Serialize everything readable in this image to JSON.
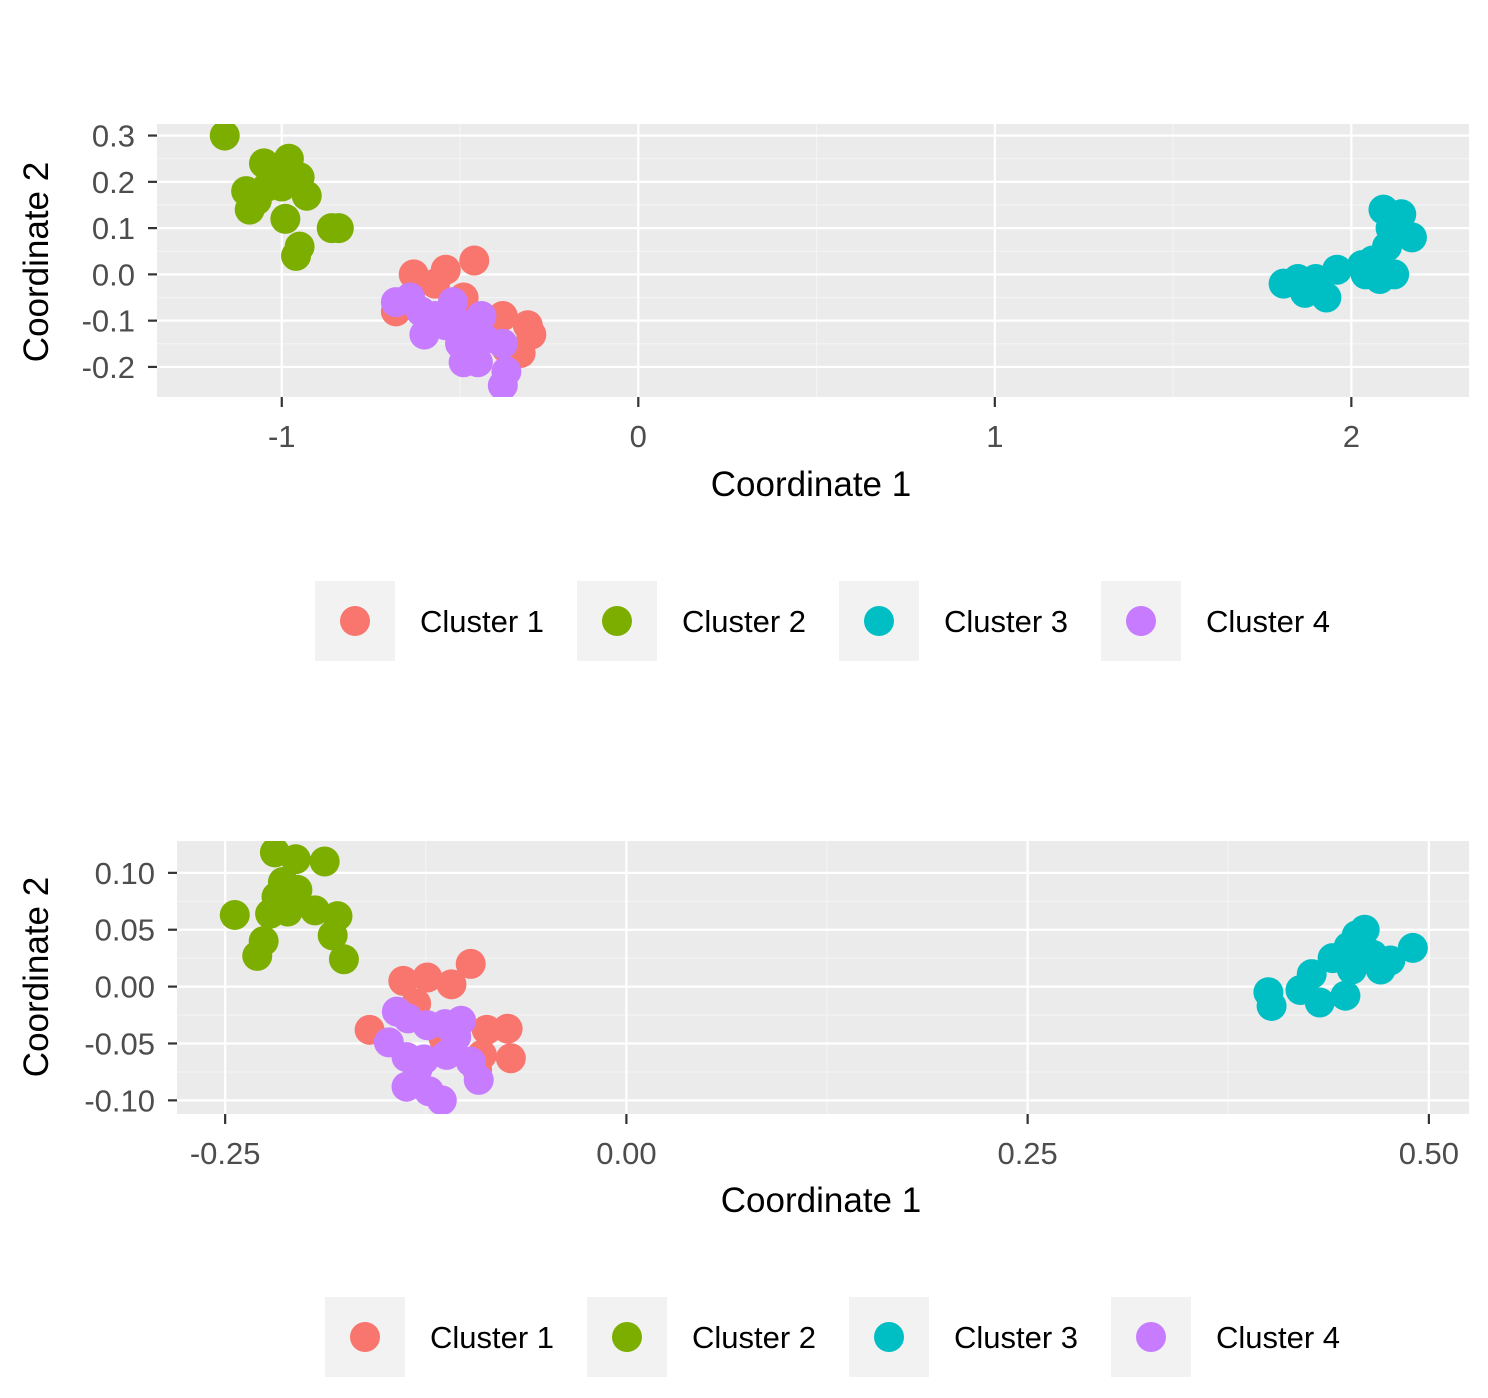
{
  "chart_data": [
    {
      "type": "scatter",
      "title": "",
      "xlabel": "Coordinate 1",
      "ylabel": "Coordinate 2",
      "xlim": [
        -1.35,
        2.33
      ],
      "ylim": [
        -0.265,
        0.325
      ],
      "xticks": [
        -1,
        0,
        1,
        2
      ],
      "xtick_labels": [
        "-1",
        "0",
        "1",
        "2"
      ],
      "yticks": [
        -0.2,
        -0.1,
        0.0,
        0.1,
        0.2,
        0.3
      ],
      "ytick_labels": [
        "-0.2",
        "-0.1",
        "0.0",
        "0.1",
        "0.2",
        "0.3"
      ],
      "legend_position": "bottom",
      "series": [
        {
          "name": "Cluster 1",
          "color": "#F8766D",
          "points": [
            [
              -0.63,
              0.0
            ],
            [
              -0.54,
              0.01
            ],
            [
              -0.46,
              0.03
            ],
            [
              -0.57,
              -0.02
            ],
            [
              -0.68,
              -0.08
            ],
            [
              -0.38,
              -0.09
            ],
            [
              -0.31,
              -0.11
            ],
            [
              -0.3,
              -0.13
            ],
            [
              -0.37,
              -0.16
            ],
            [
              -0.33,
              -0.17
            ],
            [
              -0.42,
              -0.12
            ],
            [
              -0.49,
              -0.05
            ]
          ]
        },
        {
          "name": "Cluster 2",
          "color": "#7CAE00",
          "points": [
            [
              -1.16,
              0.3
            ],
            [
              -1.1,
              0.18
            ],
            [
              -1.05,
              0.24
            ],
            [
              -1.02,
              0.22
            ],
            [
              -0.98,
              0.25
            ],
            [
              -1.0,
              0.19
            ],
            [
              -1.04,
              0.19
            ],
            [
              -0.95,
              0.21
            ],
            [
              -1.07,
              0.16
            ],
            [
              -0.93,
              0.17
            ],
            [
              -1.09,
              0.14
            ],
            [
              -0.99,
              0.12
            ],
            [
              -0.86,
              0.1
            ],
            [
              -0.84,
              0.1
            ],
            [
              -0.95,
              0.06
            ],
            [
              -0.96,
              0.04
            ]
          ]
        },
        {
          "name": "Cluster 3",
          "color": "#00BFC4",
          "points": [
            [
              1.81,
              -0.02
            ],
            [
              1.85,
              -0.01
            ],
            [
              1.9,
              -0.01
            ],
            [
              1.87,
              -0.04
            ],
            [
              1.93,
              -0.05
            ],
            [
              1.96,
              0.01
            ],
            [
              2.03,
              0.02
            ],
            [
              2.06,
              0.03
            ],
            [
              2.08,
              -0.01
            ],
            [
              2.12,
              0.0
            ],
            [
              2.1,
              0.06
            ],
            [
              2.11,
              0.1
            ],
            [
              2.09,
              0.14
            ],
            [
              2.14,
              0.13
            ],
            [
              2.17,
              0.08
            ],
            [
              2.04,
              0.0
            ]
          ]
        },
        {
          "name": "Cluster 4",
          "color": "#C77CFF",
          "points": [
            [
              -0.68,
              -0.06
            ],
            [
              -0.64,
              -0.05
            ],
            [
              -0.61,
              -0.08
            ],
            [
              -0.57,
              -0.09
            ],
            [
              -0.52,
              -0.06
            ],
            [
              -0.6,
              -0.13
            ],
            [
              -0.54,
              -0.11
            ],
            [
              -0.48,
              -0.11
            ],
            [
              -0.5,
              -0.15
            ],
            [
              -0.49,
              -0.19
            ],
            [
              -0.45,
              -0.19
            ],
            [
              -0.43,
              -0.14
            ],
            [
              -0.38,
              -0.15
            ],
            [
              -0.37,
              -0.21
            ],
            [
              -0.38,
              -0.24
            ],
            [
              -0.44,
              -0.09
            ]
          ]
        }
      ]
    },
    {
      "type": "scatter",
      "title": "",
      "xlabel": "Coordinate 1",
      "ylabel": "Coordinate 2",
      "xlim": [
        -0.28,
        0.525
      ],
      "ylim": [
        -0.112,
        0.128
      ],
      "xticks": [
        -0.25,
        0.0,
        0.25,
        0.5
      ],
      "xtick_labels": [
        "-0.25",
        "0.00",
        "0.25",
        "0.50"
      ],
      "yticks": [
        -0.1,
        -0.05,
        0.0,
        0.05,
        0.1
      ],
      "ytick_labels": [
        "-0.10",
        "-0.05",
        "0.00",
        "0.05",
        "0.10"
      ],
      "legend_position": "bottom",
      "series": [
        {
          "name": "Cluster 1",
          "color": "#F8766D",
          "points": [
            [
              -0.139,
              0.005
            ],
            [
              -0.124,
              0.008
            ],
            [
              -0.109,
              0.002
            ],
            [
              -0.097,
              0.02
            ],
            [
              -0.131,
              -0.015
            ],
            [
              -0.16,
              -0.038
            ],
            [
              -0.087,
              -0.038
            ],
            [
              -0.074,
              -0.037
            ],
            [
              -0.09,
              -0.06
            ],
            [
              -0.072,
              -0.063
            ],
            [
              -0.093,
              -0.073
            ],
            [
              -0.114,
              -0.045
            ]
          ]
        },
        {
          "name": "Cluster 2",
          "color": "#7CAE00",
          "points": [
            [
              -0.219,
              0.118
            ],
            [
              -0.206,
              0.112
            ],
            [
              -0.188,
              0.11
            ],
            [
              -0.214,
              0.092
            ],
            [
              -0.205,
              0.085
            ],
            [
              -0.218,
              0.079
            ],
            [
              -0.222,
              0.064
            ],
            [
              -0.211,
              0.066
            ],
            [
              -0.244,
              0.063
            ],
            [
              -0.226,
              0.04
            ],
            [
              -0.23,
              0.027
            ],
            [
              -0.194,
              0.067
            ],
            [
              -0.18,
              0.062
            ],
            [
              -0.183,
              0.045
            ],
            [
              -0.176,
              0.024
            ]
          ]
        },
        {
          "name": "Cluster 3",
          "color": "#00BFC4",
          "points": [
            [
              0.4,
              -0.005
            ],
            [
              0.402,
              -0.017
            ],
            [
              0.42,
              -0.003
            ],
            [
              0.427,
              0.011
            ],
            [
              0.432,
              -0.014
            ],
            [
              0.44,
              0.025
            ],
            [
              0.45,
              0.035
            ],
            [
              0.455,
              0.045
            ],
            [
              0.46,
              0.025
            ],
            [
              0.465,
              0.028
            ],
            [
              0.47,
              0.015
            ],
            [
              0.476,
              0.023
            ],
            [
              0.49,
              0.034
            ],
            [
              0.452,
              0.015
            ],
            [
              0.448,
              -0.008
            ],
            [
              0.46,
              0.05
            ]
          ]
        },
        {
          "name": "Cluster 4",
          "color": "#C77CFF",
          "points": [
            [
              -0.143,
              -0.022
            ],
            [
              -0.136,
              -0.028
            ],
            [
              -0.124,
              -0.034
            ],
            [
              -0.113,
              -0.033
            ],
            [
              -0.103,
              -0.03
            ],
            [
              -0.148,
              -0.049
            ],
            [
              -0.137,
              -0.062
            ],
            [
              -0.126,
              -0.064
            ],
            [
              -0.112,
              -0.06
            ],
            [
              -0.097,
              -0.066
            ],
            [
              -0.092,
              -0.082
            ],
            [
              -0.137,
              -0.088
            ],
            [
              -0.123,
              -0.092
            ],
            [
              -0.115,
              -0.1
            ],
            [
              -0.106,
              -0.044
            ],
            [
              -0.13,
              -0.072
            ]
          ]
        }
      ]
    }
  ]
}
